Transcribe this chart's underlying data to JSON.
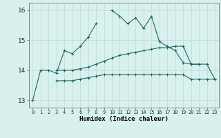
{
  "xlabel": "Humidex (Indice chaleur)",
  "background_color": "#d8f0ee",
  "grid_color": "#c0deda",
  "line_color": "#1a6b5a",
  "x_hours": [
    0,
    1,
    2,
    3,
    4,
    5,
    6,
    7,
    8,
    9,
    10,
    11,
    12,
    13,
    14,
    15,
    16,
    17,
    18,
    19,
    20,
    21,
    22,
    23
  ],
  "line1": [
    13.0,
    14.0,
    14.0,
    13.9,
    14.65,
    14.55,
    14.8,
    15.1,
    15.55,
    null,
    16.0,
    15.8,
    15.55,
    15.75,
    15.4,
    15.8,
    14.95,
    14.8,
    14.65,
    14.25,
    14.2,
    14.2,
    null,
    null
  ],
  "line2": [
    null,
    null,
    null,
    14.0,
    14.0,
    14.0,
    14.05,
    14.1,
    14.2,
    14.3,
    14.4,
    14.5,
    14.55,
    14.6,
    14.65,
    14.7,
    14.75,
    14.75,
    14.8,
    14.8,
    14.2,
    14.2,
    14.2,
    13.7
  ],
  "line3": [
    null,
    null,
    null,
    13.65,
    13.65,
    13.65,
    13.7,
    13.75,
    13.8,
    13.85,
    13.85,
    13.85,
    13.85,
    13.85,
    13.85,
    13.85,
    13.85,
    13.85,
    13.85,
    13.85,
    13.7,
    13.7,
    13.7,
    13.7
  ],
  "ylim": [
    12.75,
    16.25
  ],
  "yticks": [
    13,
    14,
    15,
    16
  ],
  "xticks": [
    0,
    1,
    2,
    3,
    4,
    5,
    6,
    7,
    8,
    9,
    10,
    11,
    12,
    13,
    14,
    15,
    16,
    17,
    18,
    19,
    20,
    21,
    22,
    23
  ]
}
